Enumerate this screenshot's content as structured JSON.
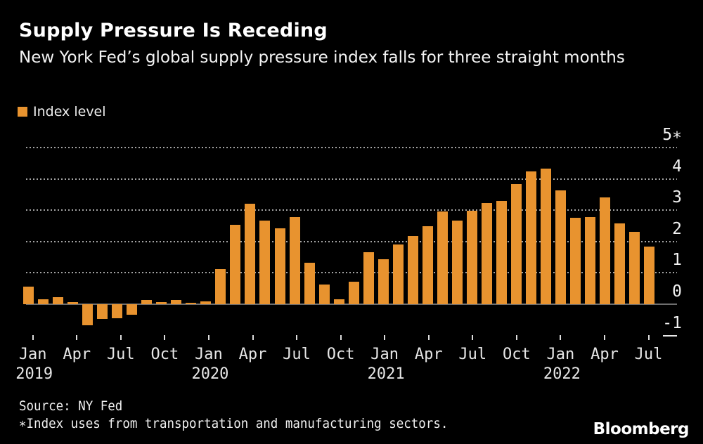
{
  "footer": {
    "brand": "Bloomberg"
  },
  "chart_data": {
    "type": "bar",
    "title": "Supply Pressure Is Receding",
    "subtitle": "New York Fed’s global supply pressure index falls for three straight months",
    "legend": "Index level",
    "source": "Source: NY Fed",
    "note": "∗Index uses from transportation and manufacturing sectors.",
    "bar_color": "#E8932F",
    "background": "#000000",
    "ylim": [
      -1,
      5
    ],
    "yticks": [
      -1,
      0,
      1,
      2,
      3,
      4,
      5
    ],
    "ytick_labels": [
      "-1",
      "0",
      "1",
      "2",
      "3",
      "4",
      "5∗"
    ],
    "xtick_months": [
      "Jan",
      "Apr",
      "Jul",
      "Oct"
    ],
    "categories": [
      "Jan 2019",
      "Feb 2019",
      "Mar 2019",
      "Apr 2019",
      "May 2019",
      "Jun 2019",
      "Jul 2019",
      "Aug 2019",
      "Sep 2019",
      "Oct 2019",
      "Nov 2019",
      "Dec 2019",
      "Jan 2020",
      "Feb 2020",
      "Mar 2020",
      "Apr 2020",
      "May 2020",
      "Jun 2020",
      "Jul 2020",
      "Aug 2020",
      "Sep 2020",
      "Oct 2020",
      "Nov 2020",
      "Dec 2020",
      "Jan 2021",
      "Feb 2021",
      "Mar 2021",
      "Apr 2021",
      "May 2021",
      "Jun 2021",
      "Jul 2021",
      "Aug 2021",
      "Sep 2021",
      "Oct 2021",
      "Nov 2021",
      "Dec 2021",
      "Jan 2022",
      "Feb 2022",
      "Mar 2022",
      "Apr 2022",
      "May 2022",
      "Jun 2022",
      "Jul 2022"
    ],
    "values": [
      0.56,
      0.15,
      0.22,
      0.06,
      -0.68,
      -0.48,
      -0.46,
      -0.34,
      0.13,
      0.07,
      0.13,
      0.05,
      0.1,
      1.12,
      2.53,
      3.22,
      2.67,
      2.42,
      2.79,
      1.33,
      0.62,
      0.15,
      0.72,
      1.65,
      1.43,
      1.91,
      2.17,
      2.5,
      2.96,
      2.68,
      2.98,
      3.24,
      3.3,
      3.84,
      4.25,
      4.34,
      3.64,
      2.77,
      2.79,
      3.41,
      2.59,
      2.32,
      1.84
    ]
  }
}
